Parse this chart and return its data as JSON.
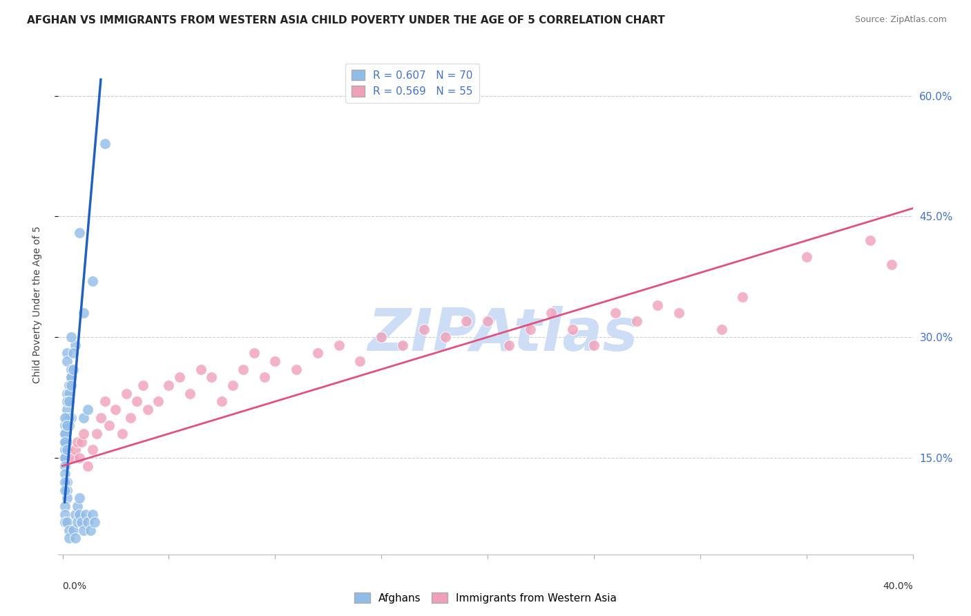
{
  "title": "AFGHAN VS IMMIGRANTS FROM WESTERN ASIA CHILD POVERTY UNDER THE AGE OF 5 CORRELATION CHART",
  "source": "Source: ZipAtlas.com",
  "ylabel": "Child Poverty Under the Age of 5",
  "watermark": "ZIPAtlas",
  "bottom_legend": [
    "Afghans",
    "Immigrants from Western Asia"
  ],
  "afghan_color": "#90bce8",
  "western_asia_color": "#f0a0b8",
  "afghan_line_color": "#2060c0",
  "western_asia_line_color": "#e05080",
  "background_color": "#ffffff",
  "tick_color_right": "#4472c4",
  "legend_r1": "R = 0.607",
  "legend_n1": "N = 70",
  "legend_r2": "R = 0.569",
  "legend_n2": "N = 55",
  "legend_color1": "#90bce8",
  "legend_color2": "#f0a0b8",
  "afghans_x": [
    0.02,
    0.008,
    0.014,
    0.01,
    0.006,
    0.004,
    0.003,
    0.003,
    0.002,
    0.002,
    0.003,
    0.004,
    0.005,
    0.004,
    0.003,
    0.004,
    0.002,
    0.002,
    0.002,
    0.001,
    0.001,
    0.002,
    0.002,
    0.003,
    0.002,
    0.002,
    0.001,
    0.001,
    0.001,
    0.001,
    0.001,
    0.001,
    0.002,
    0.002,
    0.002,
    0.001,
    0.001,
    0.001,
    0.001,
    0.001,
    0.002,
    0.003,
    0.003,
    0.005,
    0.006,
    0.006,
    0.007,
    0.007,
    0.008,
    0.008,
    0.009,
    0.01,
    0.011,
    0.012,
    0.013,
    0.014,
    0.015,
    0.01,
    0.012,
    0.004,
    0.003,
    0.002,
    0.001,
    0.001,
    0.001,
    0.002,
    0.002,
    0.003,
    0.004,
    0.005
  ],
  "afghans_y": [
    0.54,
    0.43,
    0.37,
    0.33,
    0.29,
    0.25,
    0.24,
    0.22,
    0.28,
    0.27,
    0.22,
    0.2,
    0.28,
    0.3,
    0.19,
    0.26,
    0.21,
    0.2,
    0.23,
    0.19,
    0.18,
    0.17,
    0.16,
    0.2,
    0.19,
    0.17,
    0.16,
    0.15,
    0.17,
    0.15,
    0.14,
    0.13,
    0.12,
    0.11,
    0.1,
    0.12,
    0.11,
    0.09,
    0.08,
    0.07,
    0.07,
    0.06,
    0.05,
    0.06,
    0.05,
    0.08,
    0.07,
    0.09,
    0.08,
    0.1,
    0.07,
    0.06,
    0.08,
    0.07,
    0.06,
    0.08,
    0.07,
    0.2,
    0.21,
    0.25,
    0.23,
    0.22,
    0.2,
    0.18,
    0.17,
    0.16,
    0.19,
    0.22,
    0.24,
    0.26
  ],
  "western_asia_x": [
    0.005,
    0.006,
    0.007,
    0.008,
    0.009,
    0.01,
    0.012,
    0.014,
    0.016,
    0.018,
    0.02,
    0.022,
    0.025,
    0.028,
    0.03,
    0.032,
    0.035,
    0.038,
    0.04,
    0.045,
    0.05,
    0.055,
    0.06,
    0.065,
    0.07,
    0.075,
    0.08,
    0.085,
    0.09,
    0.095,
    0.1,
    0.11,
    0.12,
    0.13,
    0.14,
    0.15,
    0.16,
    0.17,
    0.18,
    0.19,
    0.2,
    0.21,
    0.22,
    0.23,
    0.24,
    0.25,
    0.26,
    0.27,
    0.28,
    0.29,
    0.31,
    0.32,
    0.35,
    0.38,
    0.39
  ],
  "western_asia_y": [
    0.15,
    0.16,
    0.17,
    0.15,
    0.17,
    0.18,
    0.14,
    0.16,
    0.18,
    0.2,
    0.22,
    0.19,
    0.21,
    0.18,
    0.23,
    0.2,
    0.22,
    0.24,
    0.21,
    0.22,
    0.24,
    0.25,
    0.23,
    0.26,
    0.25,
    0.22,
    0.24,
    0.26,
    0.28,
    0.25,
    0.27,
    0.26,
    0.28,
    0.29,
    0.27,
    0.3,
    0.29,
    0.31,
    0.3,
    0.32,
    0.32,
    0.29,
    0.31,
    0.33,
    0.31,
    0.29,
    0.33,
    0.32,
    0.34,
    0.33,
    0.31,
    0.35,
    0.4,
    0.42,
    0.39
  ],
  "afghan_trend_x": [
    0.001,
    0.018
  ],
  "afghan_trend_y": [
    0.095,
    0.62
  ],
  "western_asia_trend_x": [
    0.0,
    0.4
  ],
  "western_asia_trend_y": [
    0.14,
    0.46
  ],
  "xlim": [
    -0.002,
    0.4
  ],
  "ylim": [
    0.03,
    0.65
  ],
  "yticks": [
    0.15,
    0.3,
    0.45,
    0.6
  ],
  "xtick_minor": [
    0.0,
    0.05,
    0.1,
    0.15,
    0.2,
    0.25,
    0.3,
    0.35,
    0.4
  ],
  "title_fontsize": 11,
  "source_fontsize": 9,
  "watermark_color": "#ccddf5",
  "watermark_fontsize": 62,
  "marker_size": 130
}
